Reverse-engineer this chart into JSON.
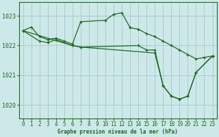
{
  "title": "Graphe pression niveau de la mer (hPa)",
  "bg_color": "#cce8e8",
  "line_color": "#1a6b1a",
  "grid_color": "#aacccc",
  "ylabel_ticks": [
    1020,
    1021,
    1022,
    1023
  ],
  "xlim": [
    -0.5,
    23.5
  ],
  "ylim": [
    1019.55,
    1023.45
  ],
  "lines": [
    {
      "x": [
        0,
        1,
        2,
        3,
        4,
        5,
        6,
        7,
        10,
        11,
        12,
        13,
        14,
        15,
        16,
        23
      ],
      "y": [
        1022.5,
        1022.6,
        1022.3,
        1022.2,
        1022.25,
        1022.15,
        1022.05,
        1022.8,
        1022.9,
        1023.05,
        1023.1,
        1022.65,
        1022.55,
        1022.0,
        1021.95,
        1021.65
      ]
    },
    {
      "x": [
        0,
        2,
        3,
        6,
        7,
        14,
        15,
        16,
        17,
        18,
        19,
        20,
        21,
        22,
        23
      ],
      "y": [
        1022.5,
        1022.15,
        1022.1,
        1022.0,
        1021.95,
        1022.0,
        1021.85,
        1021.75,
        1020.7,
        1020.35,
        1020.25,
        1020.3,
        1021.1,
        1021.55,
        1021.65
      ]
    },
    {
      "x": [
        0,
        6,
        7,
        16,
        17,
        18,
        19,
        20,
        21,
        23
      ],
      "y": [
        1022.5,
        1022.0,
        1021.95,
        1021.7,
        1020.65,
        1020.3,
        1020.2,
        1020.3,
        1021.1,
        1021.65
      ]
    }
  ]
}
